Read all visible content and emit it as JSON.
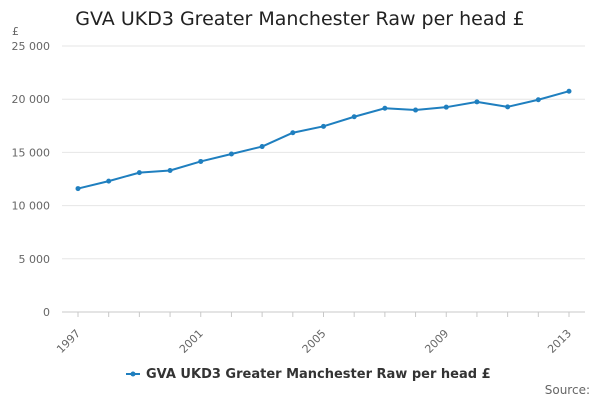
{
  "chart_data": {
    "type": "line",
    "title": "GVA UKD3 Greater Manchester Raw per head £",
    "ylabel": "£",
    "xlabel": "",
    "ylim": [
      0,
      25000
    ],
    "yticks": [
      0,
      5000,
      10000,
      15000,
      20000,
      25000
    ],
    "ytick_labels": [
      "0",
      "5 000",
      "10 000",
      "15 000",
      "20 000",
      "25 000"
    ],
    "xlim": [
      1997,
      2013
    ],
    "xticks": [
      1997,
      2001,
      2005,
      2009,
      2013
    ],
    "xtick_labels": [
      "1997",
      "2001",
      "2005",
      "2009",
      "2013"
    ],
    "grid": "horizontal",
    "legend_position": "bottom",
    "series": [
      {
        "name": "GVA UKD3 Greater Manchester Raw per head £",
        "color": "#1f7fbf",
        "x": [
          1997,
          1998,
          1999,
          2000,
          2001,
          2002,
          2003,
          2004,
          2005,
          2006,
          2007,
          2008,
          2009,
          2010,
          2011,
          2012,
          2013
        ],
        "y": [
          11600,
          12300,
          13100,
          13300,
          14150,
          14850,
          15550,
          16850,
          17450,
          18350,
          19150,
          18980,
          19250,
          19750,
          19280,
          19950,
          20750
        ]
      }
    ],
    "source_label": "Source:"
  }
}
